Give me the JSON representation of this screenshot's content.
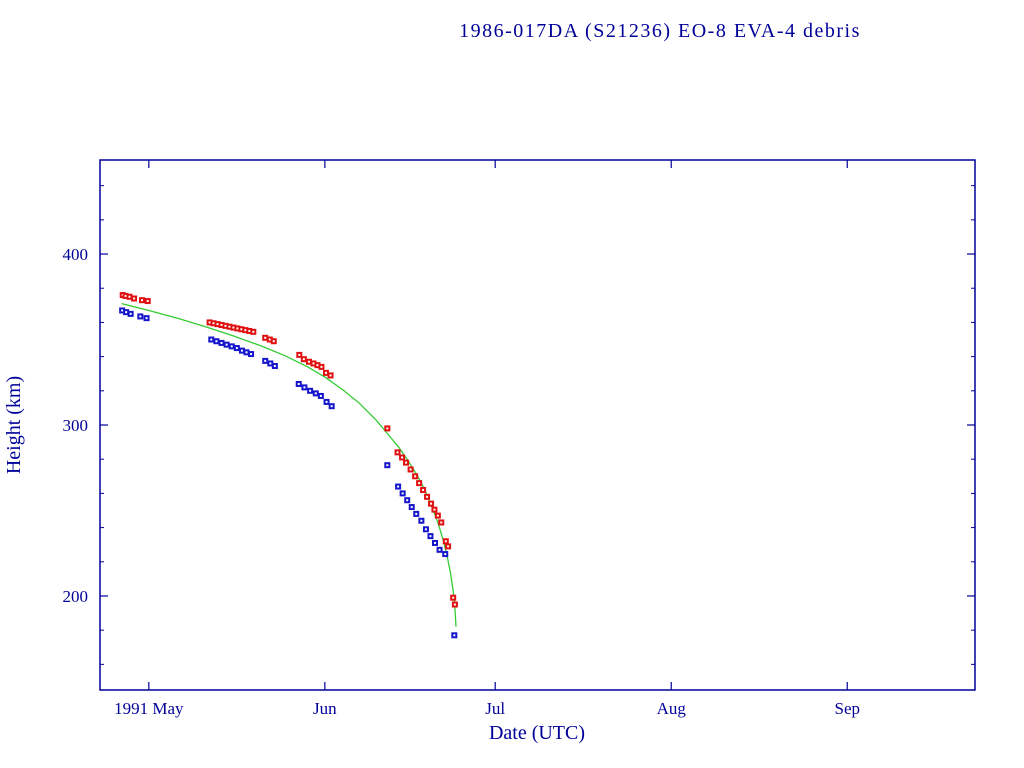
{
  "page": {
    "background": "#ffffff"
  },
  "chart_data": {
    "type": "scatter",
    "title": "1986-017DA (S21236) EO-8 EVA-4 debris",
    "xlabel": "Date (UTC)",
    "ylabel": "Height (km)",
    "x_unit": "days since 1991 May 1",
    "x_range": [
      -8.6,
      145.5
    ],
    "y_range": [
      145,
      455
    ],
    "grid": false,
    "legend": "none",
    "x_ticks": [
      {
        "value": 0,
        "label": "1991 May"
      },
      {
        "value": 31,
        "label": "Jun"
      },
      {
        "value": 61,
        "label": "Jul"
      },
      {
        "value": 92,
        "label": "Aug"
      },
      {
        "value": 123,
        "label": "Sep"
      }
    ],
    "y_ticks": [
      {
        "value": 200,
        "label": "200"
      },
      {
        "value": 300,
        "label": "300"
      },
      {
        "value": 400,
        "label": "400"
      }
    ],
    "y_minor_step": 20,
    "colors": {
      "axis": "#000099",
      "red_series": "#e01010",
      "blue_series": "#1515cc",
      "green_line": "#33cc33"
    },
    "series": [
      {
        "name": "green-decay-curve",
        "type": "line",
        "color_key": "green_line",
        "points": [
          [
            -4.8,
            371
          ],
          [
            0,
            367
          ],
          [
            5,
            362.5
          ],
          [
            10,
            357.5
          ],
          [
            15,
            352
          ],
          [
            20,
            346
          ],
          [
            24,
            340.5
          ],
          [
            28,
            334
          ],
          [
            31,
            328
          ],
          [
            34,
            321
          ],
          [
            37,
            313
          ],
          [
            40,
            303
          ],
          [
            42,
            295
          ],
          [
            44,
            287
          ],
          [
            45.5,
            280
          ],
          [
            47,
            272
          ],
          [
            48,
            266
          ],
          [
            49,
            259
          ],
          [
            50,
            251
          ],
          [
            51,
            242
          ],
          [
            51.8,
            233
          ],
          [
            52.5,
            224
          ],
          [
            53.1,
            214
          ],
          [
            53.6,
            203
          ],
          [
            53.9,
            193
          ],
          [
            54.1,
            182
          ]
        ]
      },
      {
        "name": "red-squares",
        "type": "marker",
        "marker": "square",
        "color_key": "red_series",
        "points": [
          [
            -4.6,
            376
          ],
          [
            -4.1,
            375.5
          ],
          [
            -3.4,
            375
          ],
          [
            -2.6,
            374
          ],
          [
            -1.2,
            373
          ],
          [
            -0.2,
            372.5
          ],
          [
            10.7,
            360
          ],
          [
            11.4,
            359.5
          ],
          [
            12.1,
            359
          ],
          [
            12.8,
            358.5
          ],
          [
            13.5,
            358
          ],
          [
            14.2,
            357.5
          ],
          [
            14.9,
            357
          ],
          [
            15.6,
            356.5
          ],
          [
            16.3,
            356
          ],
          [
            17.0,
            355.5
          ],
          [
            17.7,
            355
          ],
          [
            18.4,
            354.5
          ],
          [
            20.5,
            351
          ],
          [
            21.3,
            350
          ],
          [
            22.0,
            349
          ],
          [
            26.5,
            341
          ],
          [
            27.3,
            338.5
          ],
          [
            28.2,
            337
          ],
          [
            29.0,
            336
          ],
          [
            29.7,
            335
          ],
          [
            30.4,
            334
          ],
          [
            31.2,
            330.5
          ],
          [
            32.0,
            329
          ],
          [
            42.0,
            298
          ],
          [
            43.8,
            284
          ],
          [
            44.6,
            281
          ],
          [
            45.3,
            278
          ],
          [
            46.1,
            274
          ],
          [
            46.9,
            270
          ],
          [
            47.6,
            266
          ],
          [
            48.3,
            262
          ],
          [
            49.0,
            258
          ],
          [
            49.7,
            254
          ],
          [
            50.3,
            250.5
          ],
          [
            50.9,
            247
          ],
          [
            51.5,
            243
          ],
          [
            52.3,
            232
          ],
          [
            52.7,
            229
          ],
          [
            53.6,
            199
          ],
          [
            53.9,
            195
          ]
        ]
      },
      {
        "name": "blue-squares",
        "type": "marker",
        "marker": "square",
        "color_key": "blue_series",
        "points": [
          [
            -4.7,
            367
          ],
          [
            -4.0,
            366
          ],
          [
            -3.2,
            365
          ],
          [
            -1.5,
            363.5
          ],
          [
            -0.4,
            362.5
          ],
          [
            11.0,
            350
          ],
          [
            11.9,
            349
          ],
          [
            12.8,
            348
          ],
          [
            13.7,
            347
          ],
          [
            14.6,
            346
          ],
          [
            15.5,
            345
          ],
          [
            16.4,
            343.5
          ],
          [
            17.2,
            342.5
          ],
          [
            18.0,
            341.5
          ],
          [
            20.5,
            337.5
          ],
          [
            21.4,
            336
          ],
          [
            22.2,
            334.5
          ],
          [
            26.4,
            324
          ],
          [
            27.4,
            322
          ],
          [
            28.4,
            320
          ],
          [
            29.4,
            318.5
          ],
          [
            30.3,
            317
          ],
          [
            31.3,
            313.5
          ],
          [
            32.2,
            311
          ],
          [
            42.0,
            276.5
          ],
          [
            43.9,
            264
          ],
          [
            44.7,
            260
          ],
          [
            45.5,
            256
          ],
          [
            46.3,
            252
          ],
          [
            47.1,
            248
          ],
          [
            48.0,
            244
          ],
          [
            48.8,
            239
          ],
          [
            49.6,
            235
          ],
          [
            50.4,
            231
          ],
          [
            51.2,
            227
          ],
          [
            52.2,
            224.5
          ],
          [
            53.8,
            177
          ]
        ]
      }
    ]
  }
}
